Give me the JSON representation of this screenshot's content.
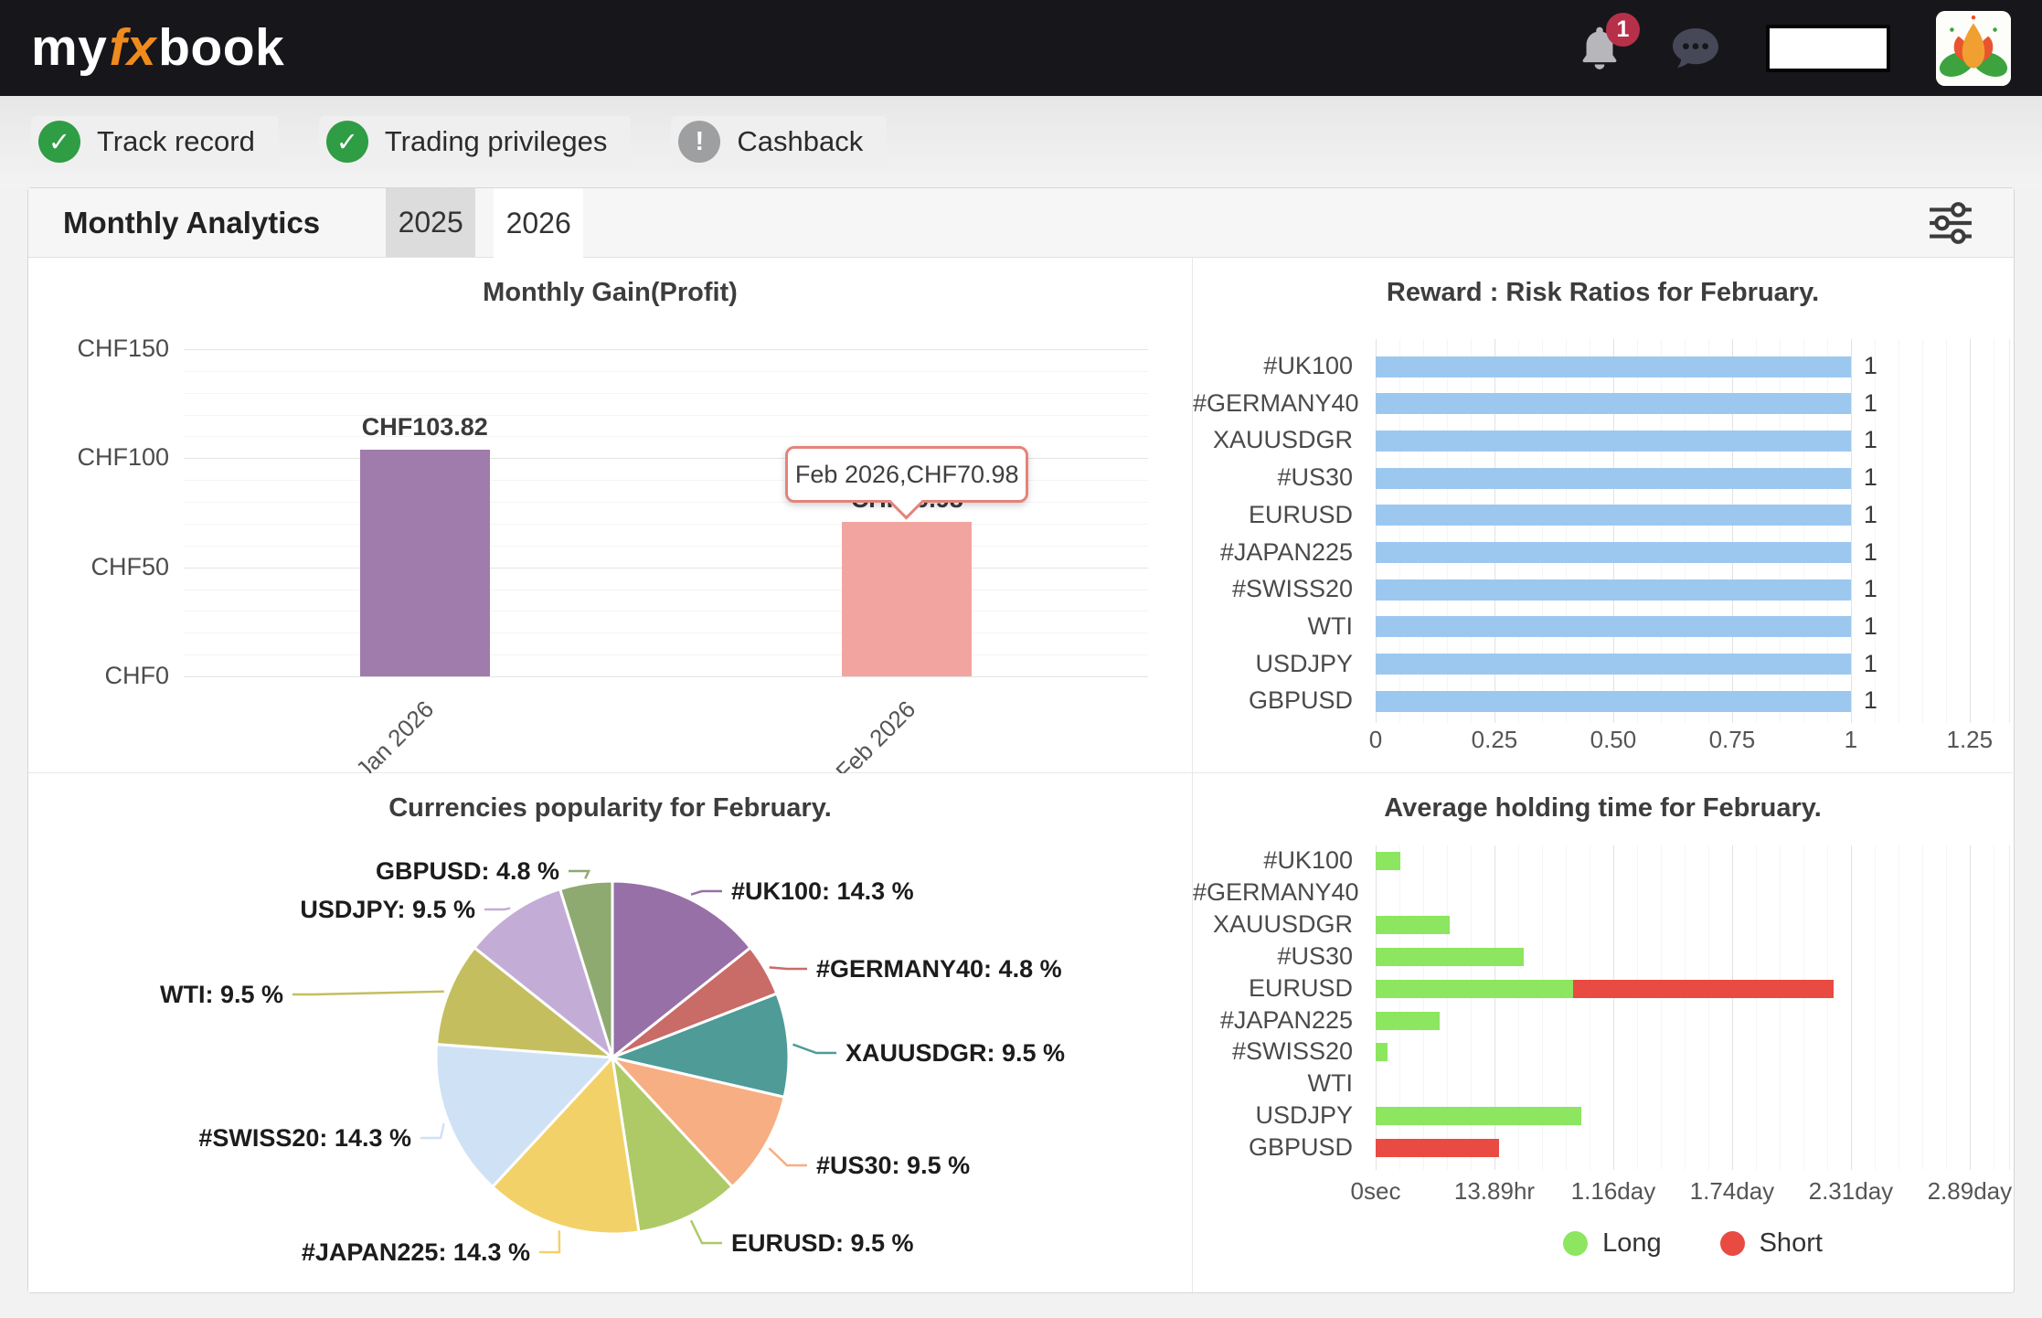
{
  "header": {
    "logo_my": "my",
    "logo_fx": "fx",
    "logo_book": "book",
    "notification_count": "1"
  },
  "status_badges": [
    {
      "label": "Track record",
      "state": "ok"
    },
    {
      "label": "Trading privileges",
      "state": "ok"
    },
    {
      "label": "Cashback",
      "state": "warn"
    }
  ],
  "panel": {
    "title": "Monthly Analytics",
    "tabs": [
      {
        "label": "2025",
        "selected": false
      },
      {
        "label": "2026",
        "selected": true
      }
    ]
  },
  "colors": {
    "header_bg": "#17171b",
    "accent_orange": "#EF8B1D",
    "badge_green": "#2E9D44",
    "badge_gray": "#9E9FA1",
    "notification_red": "#B73049",
    "reward_risk_blue": "#9CC8F0",
    "long_green": "#8CE65F",
    "short_red": "#E94B42",
    "tooltip_border": "#E4837A"
  },
  "chart_data": [
    {
      "id": "monthly_gain",
      "type": "bar",
      "title": "Monthly Gain(Profit)",
      "categories": [
        "Jan 2026",
        "Feb 2026"
      ],
      "values": [
        103.82,
        70.98
      ],
      "bar_labels": [
        "CHF103.82",
        "CHF70.98"
      ],
      "bar_colors": [
        "#9F7CAC",
        "#F2A5A0"
      ],
      "ylabel_prefix": "CHF",
      "yticks": [
        {
          "label": "CHF0",
          "value": 0
        },
        {
          "label": "CHF50",
          "value": 50
        },
        {
          "label": "CHF100",
          "value": 100
        },
        {
          "label": "CHF150",
          "value": 150
        }
      ],
      "ylim": [
        0,
        150
      ],
      "grid": true,
      "tooltip": {
        "text": "Feb 2026,CHF70.98",
        "target": "Feb 2026"
      }
    },
    {
      "id": "reward_risk",
      "type": "bar",
      "orientation": "horizontal",
      "title": "Reward : Risk Ratios for February.",
      "categories": [
        "#UK100",
        "#GERMANY40",
        "XAUUSDGR",
        "#US30",
        "EURUSD",
        "#JAPAN225",
        "#SWISS20",
        "WTI",
        "USDJPY",
        "GBPUSD"
      ],
      "series": [
        {
          "name": "ratio",
          "color": "#9CC8F0",
          "values": [
            1,
            1,
            1,
            1,
            1,
            1,
            1,
            1,
            1,
            1
          ]
        }
      ],
      "value_label": "1",
      "xticks": [
        "0",
        "0.25",
        "0.50",
        "0.75",
        "1",
        "1.25"
      ],
      "tick_values": [
        0,
        0.25,
        0.5,
        0.75,
        1,
        1.25
      ],
      "xlim": [
        0,
        1.335
      ],
      "grid": true
    },
    {
      "id": "currencies_popularity",
      "type": "pie",
      "title": "Currencies popularity for February.",
      "label_format": "{label}: {pct} %",
      "slices": [
        {
          "label": "#UK100",
          "pct": 14.3,
          "color": "#9770A8"
        },
        {
          "label": "#GERMANY40",
          "pct": 4.8,
          "color": "#C96B67"
        },
        {
          "label": "XAUUSDGR",
          "pct": 9.5,
          "color": "#4E9B97"
        },
        {
          "label": "#US30",
          "pct": 9.5,
          "color": "#F7AE82"
        },
        {
          "label": "EURUSD",
          "pct": 9.5,
          "color": "#ADCA67"
        },
        {
          "label": "#JAPAN225",
          "pct": 14.3,
          "color": "#F3D169"
        },
        {
          "label": "#SWISS20",
          "pct": 14.3,
          "color": "#CFE2F5"
        },
        {
          "label": "WTI",
          "pct": 9.5,
          "color": "#C4BE5F"
        },
        {
          "label": "USDJPY",
          "pct": 9.5,
          "color": "#C3ADD6"
        },
        {
          "label": "GBPUSD",
          "pct": 4.8,
          "color": "#8EAA70"
        }
      ]
    },
    {
      "id": "avg_holding_time",
      "type": "bar",
      "orientation": "horizontal",
      "stacked": true,
      "title": "Average holding time for February.",
      "categories": [
        "#UK100",
        "#GERMANY40",
        "XAUUSDGR",
        "#US30",
        "EURUSD",
        "#JAPAN225",
        "#SWISS20",
        "WTI",
        "USDJPY",
        "GBPUSD"
      ],
      "unit": "day",
      "series": [
        {
          "name": "Long",
          "color": "#8CE65F",
          "values": [
            0.12,
            0,
            0.36,
            0.72,
            0.96,
            0.31,
            0.06,
            0,
            1.0,
            0
          ]
        },
        {
          "name": "Short",
          "color": "#E94B42",
          "values": [
            0,
            0,
            0,
            0,
            1.27,
            0,
            0,
            0,
            0,
            0.6
          ]
        }
      ],
      "xticks": [
        "0sec",
        "13.89hr",
        "1.16day",
        "1.74day",
        "2.31day",
        "2.89day"
      ],
      "tick_values": [
        0,
        0.5787,
        1.1574,
        1.7361,
        2.3148,
        2.8935
      ],
      "xlim": [
        0,
        3.09
      ],
      "legend": [
        "Long",
        "Short"
      ],
      "legend_position": "bottom",
      "grid": true
    }
  ]
}
